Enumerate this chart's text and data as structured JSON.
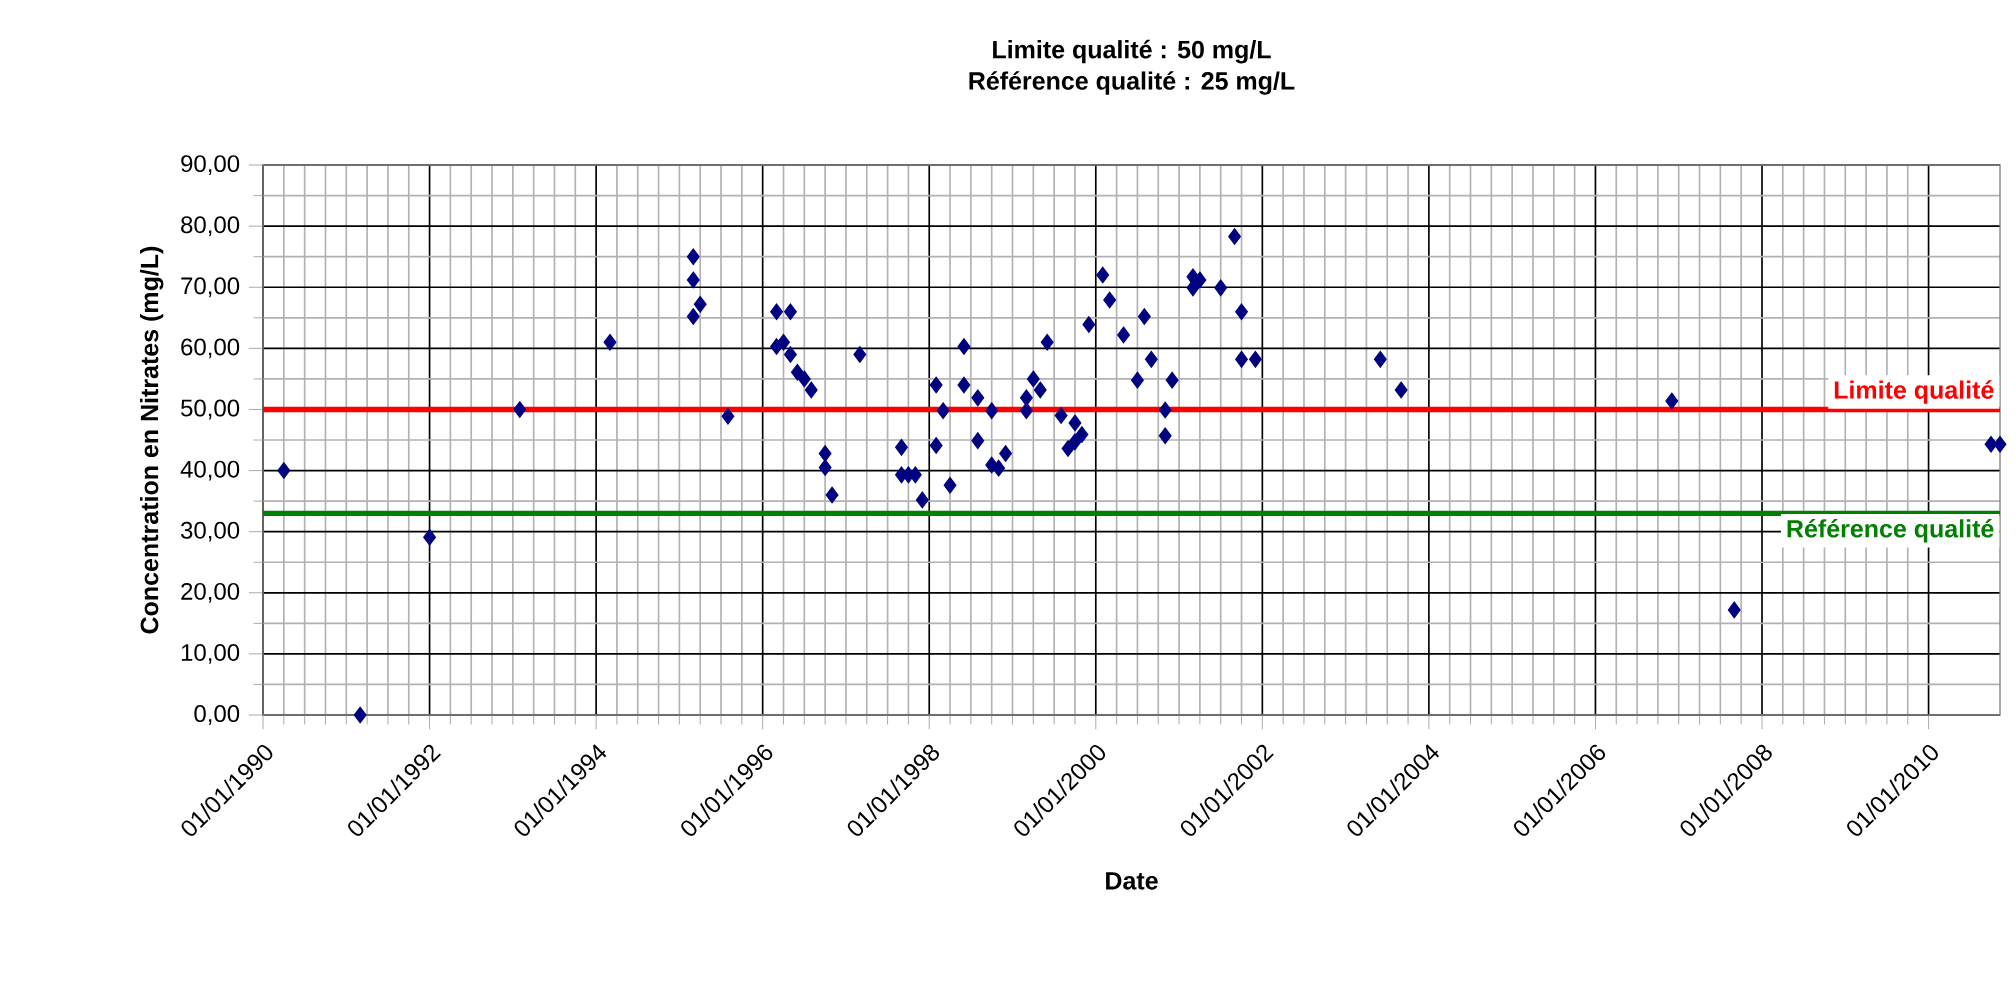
{
  "chart_data": {
    "type": "scatter",
    "title": "Limite qualité : 50 mg/L",
    "subtitle": "Référence qualité : 25 mg/L",
    "xlabel": "Date",
    "ylabel": "Concentration en Nitrates (mg/L)",
    "x": [
      "1990-04",
      "1991-03",
      "1992-01",
      "1993-02",
      "1994-03",
      "1995-03",
      "1995-03",
      "1995-04",
      "1995-03",
      "1995-08",
      "1996-03",
      "1996-03",
      "1996-05",
      "1996-04",
      "1996-05",
      "1996-06",
      "1996-07",
      "1996-08",
      "1996-10",
      "1996-10",
      "1996-11",
      "1997-03",
      "1997-09",
      "1997-09",
      "1997-10",
      "1997-11",
      "1997-12",
      "1998-02",
      "1998-02",
      "1998-03",
      "1998-04",
      "1998-06",
      "1998-06",
      "1998-08",
      "1998-08",
      "1998-10",
      "1998-10",
      "1998-11",
      "1998-12",
      "1999-03",
      "1999-03",
      "1999-04",
      "1999-05",
      "1999-06",
      "1999-08",
      "1999-09",
      "1999-10",
      "1999-10",
      "1999-11",
      "1999-12",
      "2000-02",
      "2000-03",
      "2000-05",
      "2000-07",
      "2000-08",
      "2000-09",
      "2000-11",
      "2000-11",
      "2000-12",
      "2001-03",
      "2001-03",
      "2001-04",
      "2001-07",
      "2001-09",
      "2001-10",
      "2001-10",
      "2001-12",
      "2003-06",
      "2003-09",
      "2006-12",
      "2007-09",
      "2010-10",
      "2010-11-10"
    ],
    "series": [
      {
        "color": "#000080",
        "values": [
          40,
          0,
          29.1,
          50,
          61,
          75,
          71.2,
          67.2,
          65.2,
          48.9,
          60.3,
          66,
          66,
          61,
          59,
          56.1,
          55,
          53.2,
          42.8,
          40.5,
          36,
          59,
          39.3,
          43.8,
          39.3,
          39.3,
          35.2,
          44.1,
          54,
          49.8,
          37.6,
          60.3,
          54,
          51.9,
          44.9,
          49.8,
          40.9,
          40.4,
          42.8,
          49.8,
          51.9,
          55,
          53.2,
          61,
          49,
          43.6,
          44.7,
          47.8,
          45.9,
          63.9,
          72,
          67.9,
          62.2,
          54.8,
          65.2,
          58.2,
          45.7,
          49.9,
          54.8,
          69.9,
          71.7,
          71.2,
          69.9,
          78.3,
          66,
          58.2,
          58.2,
          58.2,
          53.2,
          51.4,
          17.2,
          44.3,
          44.3
        ]
      }
    ],
    "marker": "diamond",
    "grid": true,
    "xlim": [
      "1990-01-01",
      "2010-11-10"
    ],
    "xticks": [
      {
        "value": "1990-01-01",
        "label": "01/01/1990"
      },
      {
        "value": "1992-01-01",
        "label": "01/01/1992"
      },
      {
        "value": "1994-01-01",
        "label": "01/01/1994"
      },
      {
        "value": "1996-01-01",
        "label": "01/01/1996"
      },
      {
        "value": "1998-01-01",
        "label": "01/01/1998"
      },
      {
        "value": "2000-01-01",
        "label": "01/01/2000"
      },
      {
        "value": "2002-01-01",
        "label": "01/01/2002"
      },
      {
        "value": "2004-01-01",
        "label": "01/01/2004"
      },
      {
        "value": "2006-01-01",
        "label": "01/01/2006"
      },
      {
        "value": "2008-01-01",
        "label": "01/01/2008"
      },
      {
        "value": "2010-01-01",
        "label": "01/01/2010"
      }
    ],
    "ylim": [
      0,
      90
    ],
    "yticks": [
      {
        "value": 0,
        "label": "0,00"
      },
      {
        "value": 10,
        "label": "10,00"
      },
      {
        "value": 20,
        "label": "20,00"
      },
      {
        "value": 30,
        "label": "30,00"
      },
      {
        "value": 40,
        "label": "40,00"
      },
      {
        "value": 50,
        "label": "50,00"
      },
      {
        "value": 60,
        "label": "60,00"
      },
      {
        "value": 70,
        "label": "70,00"
      },
      {
        "value": 80,
        "label": "80,00"
      },
      {
        "value": 90,
        "label": "90,00"
      }
    ],
    "ref_lines": [
      {
        "axis": "y",
        "value": 50,
        "label": "Limite qualité",
        "color": "#ff0000"
      },
      {
        "axis": "y",
        "value": 33,
        "label": "Référence qualité",
        "color": "#008000"
      }
    ]
  }
}
